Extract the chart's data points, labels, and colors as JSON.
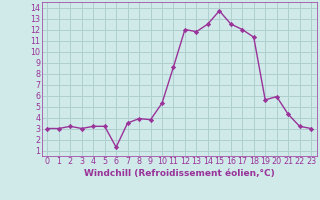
{
  "x": [
    0,
    1,
    2,
    3,
    4,
    5,
    6,
    7,
    8,
    9,
    10,
    11,
    12,
    13,
    14,
    15,
    16,
    17,
    18,
    19,
    20,
    21,
    22,
    23
  ],
  "y": [
    3.0,
    3.0,
    3.2,
    3.0,
    3.2,
    3.2,
    1.3,
    3.5,
    3.9,
    3.8,
    5.3,
    8.6,
    12.0,
    11.8,
    12.5,
    13.7,
    12.5,
    12.0,
    11.3,
    5.6,
    5.9,
    4.3,
    3.2,
    3.0
  ],
  "line_color": "#993399",
  "marker": "D",
  "marker_size": 2.2,
  "xlabel": "Windchill (Refroidissement éolien,°C)",
  "xlim": [
    -0.5,
    23.5
  ],
  "ylim": [
    0.5,
    14.5
  ],
  "yticks": [
    1,
    2,
    3,
    4,
    5,
    6,
    7,
    8,
    9,
    10,
    11,
    12,
    13,
    14
  ],
  "xticks": [
    0,
    1,
    2,
    3,
    4,
    5,
    6,
    7,
    8,
    9,
    10,
    11,
    12,
    13,
    14,
    15,
    16,
    17,
    18,
    19,
    20,
    21,
    22,
    23
  ],
  "grid_color": "#b0d0d0",
  "bg_color": "#d0eaea",
  "xlabel_color": "#993399",
  "tick_color": "#993399",
  "line_width": 1.0,
  "font_size": 5.8,
  "xlabel_fontsize": 6.5
}
